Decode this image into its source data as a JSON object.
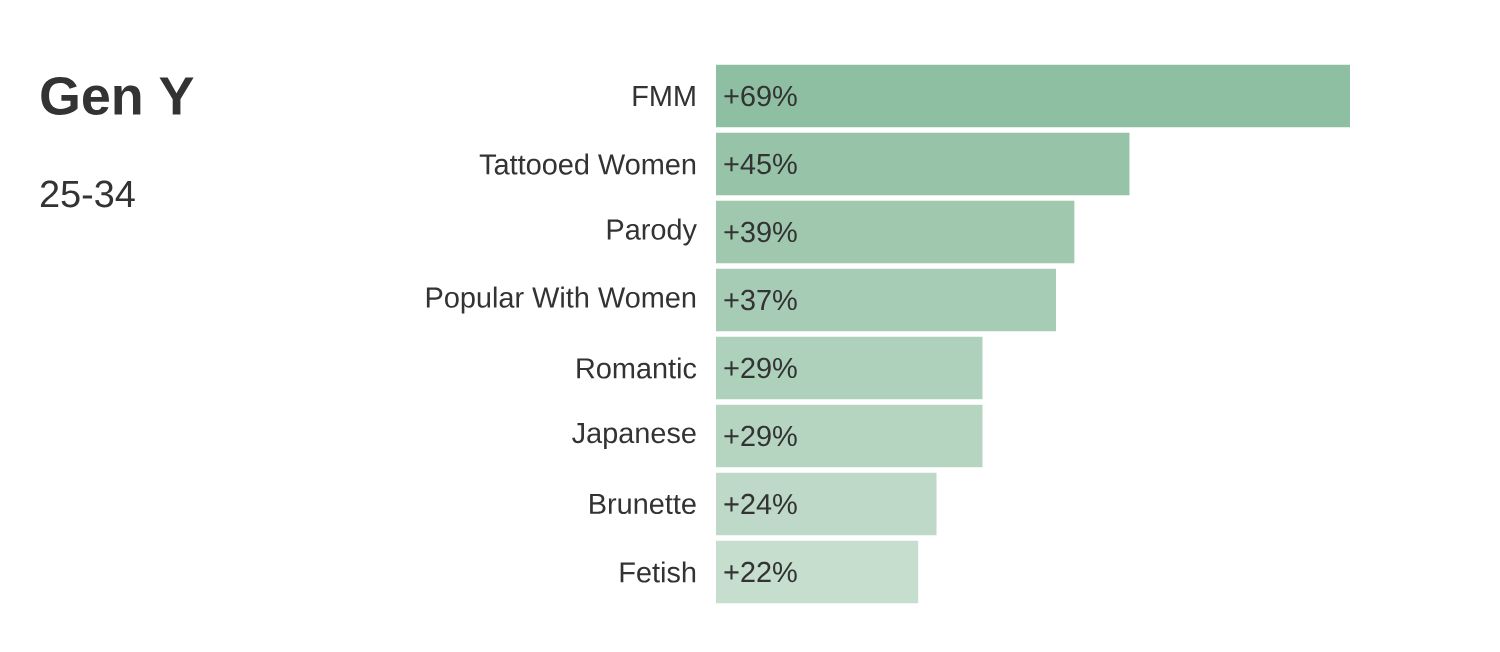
{
  "chart_data": {
    "type": "bar",
    "orientation": "horizontal",
    "title": "Gen Y",
    "subtitle": "25-34",
    "categories": [
      "FMM",
      "Tattooed Women",
      "Parody",
      "Popular With Women",
      "Romantic",
      "Japanese",
      "Brunette",
      "Fetish"
    ],
    "values": [
      69,
      45,
      39,
      37,
      29,
      29,
      24,
      22
    ],
    "value_labels": [
      "+69%",
      "+45%",
      "+39%",
      "+37%",
      "+29%",
      "+29%",
      "+24%",
      "+22%"
    ],
    "colors": [
      "#8fbfa2",
      "#97c4a8",
      "#9fc8af",
      "#a6ccb5",
      "#aed1bb",
      "#b6d5c1",
      "#bed9c8",
      "#c5dece"
    ],
    "tick_labels": "y"
  }
}
